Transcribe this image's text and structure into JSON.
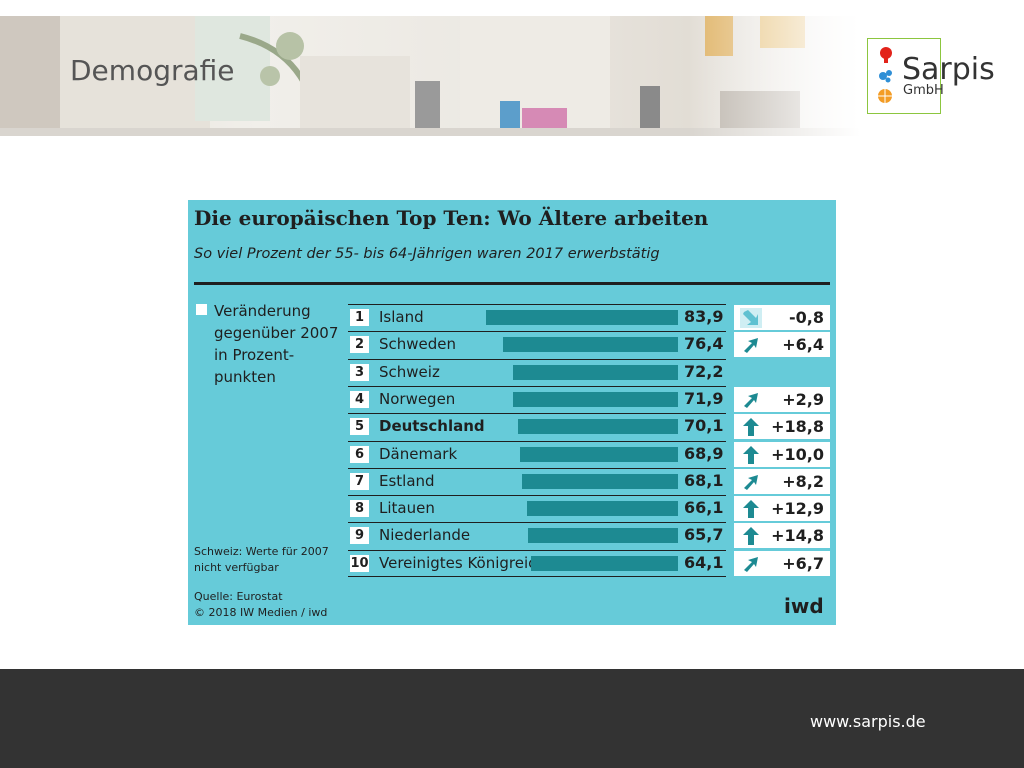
{
  "slide": {
    "title": "Demografie",
    "logo_name": "Sarpis",
    "logo_sub": "GmbH",
    "footer_url": "www.sarpis.de"
  },
  "chart_data": {
    "type": "bar",
    "orientation": "horizontal",
    "title": "Die europäischen Top Ten: Wo Ältere arbeiten",
    "subtitle": "So viel Prozent der 55- bis 64-Jährigen waren 2017 erwerbstätig",
    "legend_label": "Veränderung gegenüber 2007 in Prozent-punkten",
    "note": "Schweiz: Werte für 2007 nicht verfügbar",
    "source_line1": "Quelle: Eurostat",
    "source_line2": "© 2018 IW Medien / iwd",
    "brand": "iwd",
    "xlim": [
      0,
      83.9
    ],
    "bar_color": "#1d8a92",
    "background_color": "#66cbd9",
    "rows": [
      {
        "rank": "1",
        "country": "Island",
        "value": 83.9,
        "value_label": "83,9",
        "change": -0.8,
        "change_label": "-0,8",
        "icon": "arrow-down-right-icon",
        "bold": false
      },
      {
        "rank": "2",
        "country": "Schweden",
        "value": 76.4,
        "value_label": "76,4",
        "change": 6.4,
        "change_label": "+6,4",
        "icon": "arrow-up-right-icon",
        "bold": false
      },
      {
        "rank": "3",
        "country": "Schweiz",
        "value": 72.2,
        "value_label": "72,2",
        "change": null,
        "change_label": "",
        "icon": "",
        "bold": false
      },
      {
        "rank": "4",
        "country": "Norwegen",
        "value": 71.9,
        "value_label": "71,9",
        "change": 2.9,
        "change_label": "+2,9",
        "icon": "arrow-up-right-icon",
        "bold": false
      },
      {
        "rank": "5",
        "country": "Deutschland",
        "value": 70.1,
        "value_label": "70,1",
        "change": 18.8,
        "change_label": "+18,8",
        "icon": "arrow-up-icon",
        "bold": true
      },
      {
        "rank": "6",
        "country": "Dänemark",
        "value": 68.9,
        "value_label": "68,9",
        "change": 10.0,
        "change_label": "+10,0",
        "icon": "arrow-up-icon",
        "bold": false
      },
      {
        "rank": "7",
        "country": "Estland",
        "value": 68.1,
        "value_label": "68,1",
        "change": 8.2,
        "change_label": "+8,2",
        "icon": "arrow-up-right-icon",
        "bold": false
      },
      {
        "rank": "8",
        "country": "Litauen",
        "value": 66.1,
        "value_label": "66,1",
        "change": 12.9,
        "change_label": "+12,9",
        "icon": "arrow-up-icon",
        "bold": false
      },
      {
        "rank": "9",
        "country": "Niederlande",
        "value": 65.7,
        "value_label": "65,7",
        "change": 14.8,
        "change_label": "+14,8",
        "icon": "arrow-up-icon",
        "bold": false
      },
      {
        "rank": "10",
        "country": "Vereinigtes Königreich",
        "value": 64.1,
        "value_label": "64,1",
        "change": 6.7,
        "change_label": "+6,7",
        "icon": "arrow-up-right-icon",
        "bold": false
      }
    ]
  }
}
